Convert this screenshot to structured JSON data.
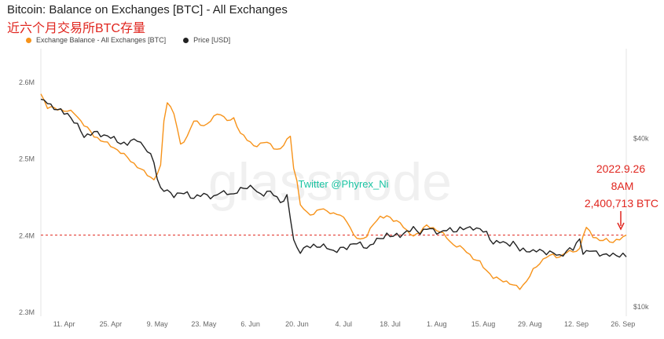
{
  "title": "Bitcoin: Balance on Exchanges [BTC] - All Exchanges",
  "subtitle": "近六个月交易所BTC存量",
  "legend": [
    {
      "label": "Exchange Balance - All Exchanges [BTC]",
      "color": "#f7931a"
    },
    {
      "label": "Price [USD]",
      "color": "#222222"
    }
  ],
  "watermark": "glassnode",
  "credit": "Twitter @Phyrex_Ni",
  "annotation": {
    "date": "2022.9.26",
    "time": "8AM",
    "value": "2,400,713 BTC",
    "color": "#e0261f"
  },
  "reference_value": 2400713,
  "chart_data": {
    "type": "line",
    "x_ticks": [
      "11. Apr",
      "25. Apr",
      "9. May",
      "23. May",
      "6. Jun",
      "20. Jun",
      "4. Jul",
      "18. Jul",
      "1. Aug",
      "15. Aug",
      "29. Aug",
      "12. Sep",
      "26. Sep"
    ],
    "x_tick_index": [
      7,
      21,
      35,
      49,
      63,
      77,
      91,
      105,
      119,
      133,
      147,
      161,
      175
    ],
    "y_left_ticks": [
      "2.3M",
      "2.4M",
      "2.5M",
      "2.6M"
    ],
    "y_left_tick_values": [
      2300000,
      2400000,
      2500000,
      2600000
    ],
    "y_left_range": [
      2300000,
      2600000
    ],
    "y_right_ticks": [
      "$10k",
      "$40k"
    ],
    "y_right_tick_values": [
      10000,
      40000
    ],
    "y_right_range": [
      9000,
      50000
    ],
    "grid": "none",
    "legend_position": "top-left",
    "series": [
      {
        "name": "Exchange Balance - All Exchanges [BTC]",
        "color": "#f7931a",
        "axis": "left",
        "anchors": [
          [
            0,
            2585000
          ],
          [
            2,
            2568000
          ],
          [
            5,
            2565000
          ],
          [
            8,
            2563000
          ],
          [
            10,
            2560000
          ],
          [
            13,
            2545000
          ],
          [
            16,
            2530000
          ],
          [
            20,
            2520000
          ],
          [
            23,
            2512000
          ],
          [
            26,
            2502000
          ],
          [
            29,
            2490000
          ],
          [
            32,
            2480000
          ],
          [
            34,
            2473000
          ],
          [
            36,
            2490000
          ],
          [
            37,
            2550000
          ],
          [
            38,
            2575000
          ],
          [
            40,
            2560000
          ],
          [
            42,
            2518000
          ],
          [
            44,
            2530000
          ],
          [
            46,
            2550000
          ],
          [
            48,
            2545000
          ],
          [
            50,
            2545000
          ],
          [
            52,
            2555000
          ],
          [
            54,
            2560000
          ],
          [
            56,
            2550000
          ],
          [
            58,
            2552000
          ],
          [
            60,
            2535000
          ],
          [
            62,
            2525000
          ],
          [
            64,
            2517000
          ],
          [
            66,
            2520000
          ],
          [
            68,
            2522000
          ],
          [
            70,
            2515000
          ],
          [
            72,
            2512000
          ],
          [
            74,
            2525000
          ],
          [
            75,
            2530000
          ],
          [
            76,
            2490000
          ],
          [
            77,
            2470000
          ],
          [
            78,
            2440000
          ],
          [
            80,
            2430000
          ],
          [
            82,
            2428000
          ],
          [
            84,
            2435000
          ],
          [
            86,
            2433000
          ],
          [
            88,
            2428000
          ],
          [
            90,
            2427000
          ],
          [
            92,
            2420000
          ],
          [
            94,
            2400000
          ],
          [
            96,
            2395000
          ],
          [
            98,
            2400000
          ],
          [
            100,
            2415000
          ],
          [
            102,
            2425000
          ],
          [
            104,
            2425000
          ],
          [
            106,
            2420000
          ],
          [
            108,
            2418000
          ],
          [
            110,
            2405000
          ],
          [
            112,
            2400000
          ],
          [
            114,
            2405000
          ],
          [
            116,
            2413000
          ],
          [
            118,
            2410000
          ],
          [
            120,
            2405000
          ],
          [
            122,
            2398000
          ],
          [
            124,
            2388000
          ],
          [
            126,
            2385000
          ],
          [
            128,
            2380000
          ],
          [
            130,
            2370000
          ],
          [
            132,
            2365000
          ],
          [
            134,
            2355000
          ],
          [
            136,
            2345000
          ],
          [
            138,
            2343000
          ],
          [
            140,
            2340000
          ],
          [
            142,
            2335000
          ],
          [
            144,
            2332000
          ],
          [
            146,
            2340000
          ],
          [
            148,
            2355000
          ],
          [
            150,
            2365000
          ],
          [
            152,
            2372000
          ],
          [
            154,
            2375000
          ],
          [
            156,
            2372000
          ],
          [
            158,
            2378000
          ],
          [
            160,
            2380000
          ],
          [
            162,
            2382000
          ],
          [
            163,
            2400000
          ],
          [
            164,
            2410000
          ],
          [
            165,
            2406000
          ],
          [
            166,
            2400000
          ],
          [
            168,
            2393000
          ],
          [
            170,
            2395000
          ],
          [
            172,
            2392000
          ],
          [
            174,
            2395000
          ],
          [
            176,
            2400713
          ]
        ]
      },
      {
        "name": "Price [USD]",
        "color": "#222222",
        "axis": "right",
        "anchors": [
          [
            0,
            47000
          ],
          [
            2,
            46500
          ],
          [
            5,
            45000
          ],
          [
            8,
            44500
          ],
          [
            10,
            43000
          ],
          [
            13,
            40500
          ],
          [
            16,
            41000
          ],
          [
            20,
            40500
          ],
          [
            23,
            39500
          ],
          [
            26,
            39000
          ],
          [
            29,
            40000
          ],
          [
            31,
            38500
          ],
          [
            34,
            36000
          ],
          [
            35,
            33000
          ],
          [
            36,
            31000
          ],
          [
            38,
            30500
          ],
          [
            40,
            30000
          ],
          [
            42,
            30200
          ],
          [
            44,
            30100
          ],
          [
            46,
            29500
          ],
          [
            48,
            29800
          ],
          [
            50,
            30000
          ],
          [
            52,
            29500
          ],
          [
            54,
            30300
          ],
          [
            56,
            30500
          ],
          [
            58,
            29800
          ],
          [
            60,
            31000
          ],
          [
            62,
            31500
          ],
          [
            64,
            31000
          ],
          [
            66,
            30000
          ],
          [
            68,
            30500
          ],
          [
            70,
            30000
          ],
          [
            72,
            28800
          ],
          [
            74,
            29500
          ],
          [
            76,
            22000
          ],
          [
            77,
            20500
          ],
          [
            78,
            20000
          ],
          [
            80,
            20500
          ],
          [
            82,
            21000
          ],
          [
            84,
            20800
          ],
          [
            86,
            20500
          ],
          [
            88,
            20000
          ],
          [
            90,
            20200
          ],
          [
            92,
            20500
          ],
          [
            94,
            21500
          ],
          [
            96,
            21000
          ],
          [
            98,
            20500
          ],
          [
            100,
            21500
          ],
          [
            102,
            22000
          ],
          [
            104,
            23000
          ],
          [
            106,
            22500
          ],
          [
            108,
            22700
          ],
          [
            110,
            23500
          ],
          [
            112,
            23800
          ],
          [
            114,
            23300
          ],
          [
            116,
            24000
          ],
          [
            118,
            23500
          ],
          [
            120,
            23300
          ],
          [
            122,
            23700
          ],
          [
            124,
            23500
          ],
          [
            126,
            24000
          ],
          [
            128,
            23800
          ],
          [
            130,
            24200
          ],
          [
            132,
            23800
          ],
          [
            134,
            23000
          ],
          [
            136,
            21500
          ],
          [
            138,
            21500
          ],
          [
            140,
            21200
          ],
          [
            142,
            21500
          ],
          [
            144,
            20000
          ],
          [
            146,
            20200
          ],
          [
            148,
            19800
          ],
          [
            150,
            20000
          ],
          [
            152,
            19800
          ],
          [
            154,
            19500
          ],
          [
            156,
            19000
          ],
          [
            158,
            20000
          ],
          [
            160,
            20200
          ],
          [
            162,
            22200
          ],
          [
            163,
            19800
          ],
          [
            164,
            19600
          ],
          [
            166,
            20000
          ],
          [
            168,
            19500
          ],
          [
            170,
            19000
          ],
          [
            172,
            19400
          ],
          [
            174,
            19200
          ],
          [
            176,
            18900
          ]
        ]
      }
    ]
  }
}
